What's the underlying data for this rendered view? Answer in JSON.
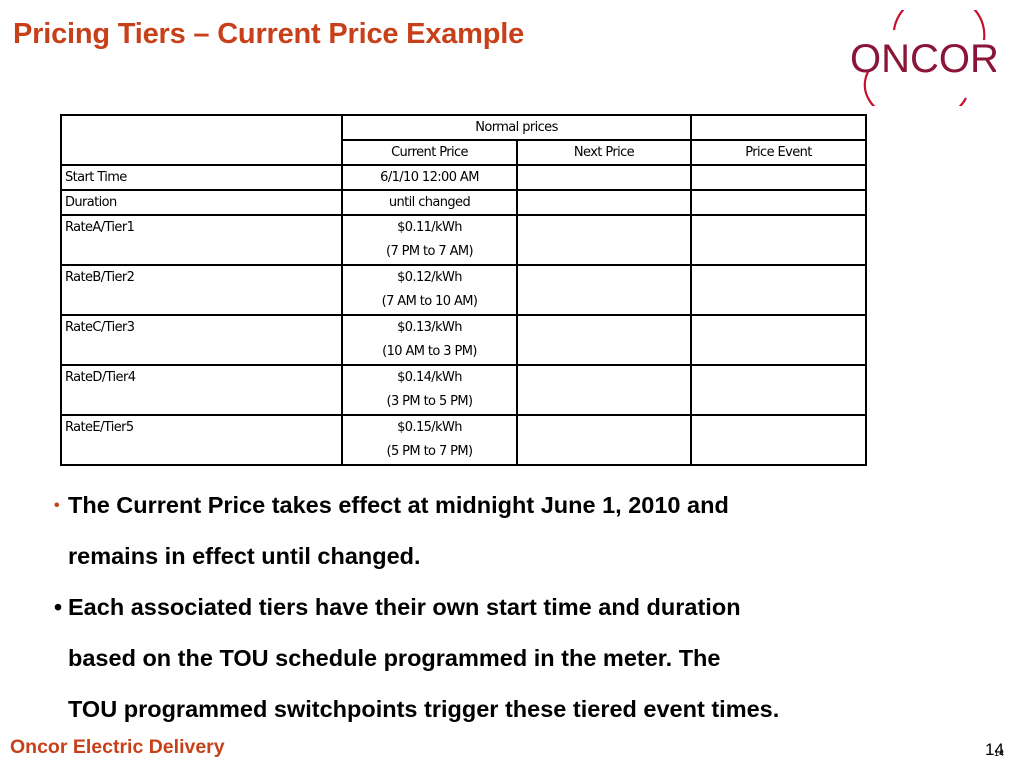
{
  "title": "Pricing Tiers – Current Price Example",
  "logo": {
    "text": "ONCOR",
    "color": "#8a1538",
    "ring_color": "#c8102e"
  },
  "table": {
    "group_header": "Normal prices",
    "columns": [
      "Current Price",
      "Next Price",
      "Price Event"
    ],
    "rows": [
      {
        "label": "Start Time",
        "current": [
          "6/1/10 12:00 AM"
        ]
      },
      {
        "label": "Duration",
        "current": [
          "until changed"
        ]
      },
      {
        "label": "RateA/Tier1",
        "current": [
          "$0.11/kWh",
          "(7 PM to 7 AM)"
        ]
      },
      {
        "label": "RateB/Tier2",
        "current": [
          "$0.12/kWh",
          "(7 AM to 10 AM)"
        ]
      },
      {
        "label": "RateC/Tier3",
        "current": [
          "$0.13/kWh",
          "(10 AM to 3 PM)"
        ]
      },
      {
        "label": "RateD/Tier4",
        "current": [
          "$0.14/kWh",
          "(3 PM to 5 PM)"
        ]
      },
      {
        "label": "RateE/Tier5",
        "current": [
          "$0.15/kWh",
          "(5 PM to 7 PM)"
        ]
      }
    ]
  },
  "bullets": [
    {
      "marker": "•",
      "lines": [
        "The Current Price takes effect at midnight June 1, 2010 and",
        "remains in effect until changed."
      ]
    },
    {
      "marker": "•",
      "lines": [
        "Each associated tiers have their own start time and duration",
        "based on the TOU schedule programmed in the meter.  The",
        "TOU programmed switchpoints trigger these tiered event times."
      ]
    }
  ],
  "footer": {
    "company": "Oncor Electric Delivery",
    "page": "14",
    "page_small": "14"
  },
  "colors": {
    "accent": "#c8401a",
    "brand": "#8a1538"
  }
}
